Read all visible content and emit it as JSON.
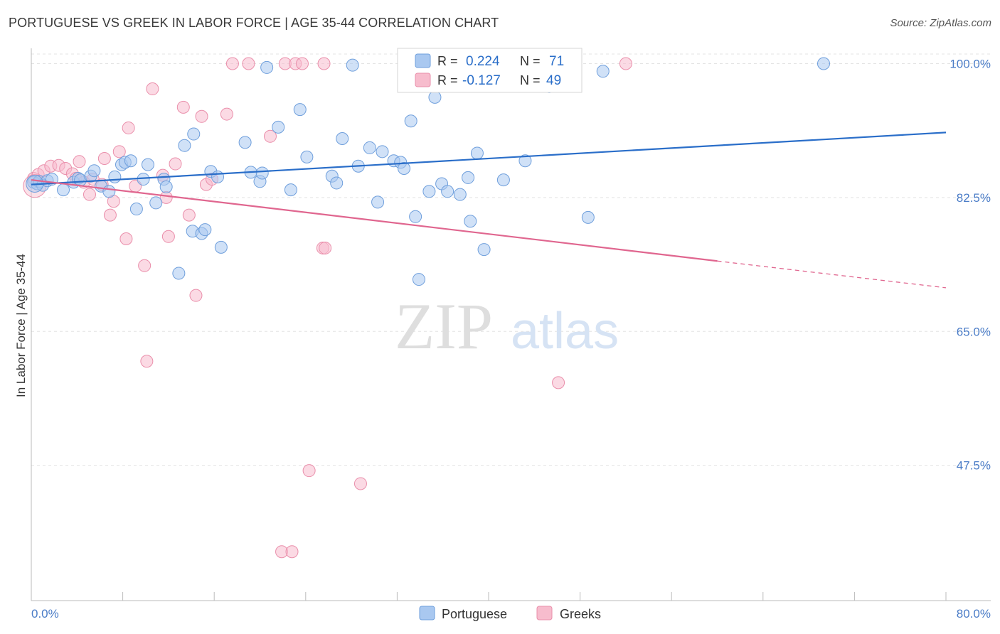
{
  "header": {
    "title": "PORTUGUESE VS GREEK IN LABOR FORCE | AGE 35-44 CORRELATION CHART",
    "source": "Source: ZipAtlas.com"
  },
  "watermark": {
    "zip": "ZIP",
    "atlas": "atlas"
  },
  "legend_box": {
    "rows": [
      {
        "r_label": "R =",
        "r_value": "0.224",
        "n_label": "N =",
        "n_value": "71"
      },
      {
        "r_label": "R =",
        "r_value": "-0.127",
        "n_label": "N =",
        "n_value": "49"
      }
    ]
  },
  "bottom_legend": [
    "Portuguese",
    "Greeks"
  ],
  "colors": {
    "portuguese_fill": "#a9c8f0",
    "portuguese_stroke": "#6f9fdc",
    "portuguese_line": "#2a6ec9",
    "greeks_fill": "#f7bccd",
    "greeks_stroke": "#ea8fab",
    "greeks_line": "#e0668f",
    "tick_text": "#4a7cc7"
  },
  "chart_data": {
    "type": "scatter",
    "title": "PORTUGUESE VS GREEK IN LABOR FORCE | AGE 35-44 CORRELATION CHART",
    "xlabel": "",
    "ylabel": "In Labor Force | Age 35-44",
    "xlim": [
      0,
      80
    ],
    "ylim": [
      30,
      102
    ],
    "x_tick_labels": [
      "0.0%",
      "80.0%"
    ],
    "y_ticks": [
      47.5,
      65.0,
      82.5,
      100.0
    ],
    "y_tick_labels": [
      "47.5%",
      "65.0%",
      "82.5%",
      "100.0%"
    ],
    "grid": true,
    "legend_position": "bottom",
    "series": [
      {
        "name": "Portuguese",
        "stats": {
          "R": 0.224,
          "N": 71
        },
        "trend": {
          "x0": 0,
          "y0": 84.2,
          "x1": 80,
          "y1": 91.0
        },
        "points": [
          [
            0.2,
            84.5
          ],
          [
            0.5,
            84.3
          ],
          [
            0.7,
            84.6
          ],
          [
            1.0,
            84.1
          ],
          [
            1.4,
            84.7
          ],
          [
            1.8,
            84.9
          ],
          [
            2.8,
            83.5
          ],
          [
            3.7,
            84.5
          ],
          [
            4.1,
            85.0
          ],
          [
            4.3,
            84.8
          ],
          [
            5.2,
            85.3
          ],
          [
            5.5,
            86.0
          ],
          [
            6.1,
            84.0
          ],
          [
            6.8,
            83.3
          ],
          [
            7.3,
            85.2
          ],
          [
            7.9,
            86.8
          ],
          [
            8.2,
            87.1
          ],
          [
            8.7,
            87.3
          ],
          [
            9.2,
            81.0
          ],
          [
            9.8,
            84.9
          ],
          [
            10.2,
            86.8
          ],
          [
            10.9,
            81.8
          ],
          [
            11.6,
            84.9
          ],
          [
            11.8,
            83.9
          ],
          [
            12.9,
            72.6
          ],
          [
            13.4,
            89.3
          ],
          [
            14.1,
            78.1
          ],
          [
            14.2,
            90.8
          ],
          [
            14.9,
            77.8
          ],
          [
            15.2,
            78.3
          ],
          [
            15.7,
            85.9
          ],
          [
            16.3,
            85.2
          ],
          [
            16.6,
            76.0
          ],
          [
            18.7,
            89.7
          ],
          [
            19.2,
            85.8
          ],
          [
            20.0,
            84.6
          ],
          [
            20.2,
            85.7
          ],
          [
            20.6,
            99.5
          ],
          [
            21.6,
            91.7
          ],
          [
            22.7,
            83.5
          ],
          [
            23.5,
            94.0
          ],
          [
            24.1,
            87.8
          ],
          [
            26.3,
            85.3
          ],
          [
            26.7,
            84.4
          ],
          [
            27.2,
            90.2
          ],
          [
            28.1,
            99.8
          ],
          [
            28.6,
            86.6
          ],
          [
            29.6,
            89.0
          ],
          [
            30.3,
            81.9
          ],
          [
            30.7,
            88.5
          ],
          [
            31.7,
            87.3
          ],
          [
            32.3,
            87.1
          ],
          [
            32.6,
            86.3
          ],
          [
            33.2,
            92.5
          ],
          [
            33.6,
            80.0
          ],
          [
            33.9,
            71.8
          ],
          [
            34.8,
            83.3
          ],
          [
            35.3,
            95.6
          ],
          [
            35.9,
            84.3
          ],
          [
            36.4,
            83.3
          ],
          [
            37.5,
            82.9
          ],
          [
            38.2,
            85.1
          ],
          [
            38.4,
            79.4
          ],
          [
            39.0,
            88.3
          ],
          [
            39.6,
            75.7
          ],
          [
            41.3,
            84.8
          ],
          [
            43.2,
            87.3
          ],
          [
            45.3,
            97.0
          ],
          [
            48.7,
            79.9
          ],
          [
            50.0,
            99.0
          ],
          [
            69.3,
            100.0
          ]
        ]
      },
      {
        "name": "Greeks",
        "stats": {
          "R": -0.127,
          "N": 49
        },
        "trend": {
          "x0": 0,
          "y0": 84.8,
          "x1": 60,
          "y1": 74.2,
          "x_dash_end": 80,
          "y_dash_end": 70.7
        },
        "points": [
          [
            0.2,
            85.0
          ],
          [
            0.6,
            85.5
          ],
          [
            1.1,
            86.0
          ],
          [
            1.7,
            86.6
          ],
          [
            2.4,
            86.7
          ],
          [
            3.0,
            86.3
          ],
          [
            3.6,
            85.6
          ],
          [
            3.9,
            85.0
          ],
          [
            4.2,
            87.2
          ],
          [
            4.6,
            84.5
          ],
          [
            5.1,
            82.9
          ],
          [
            5.4,
            84.9
          ],
          [
            6.2,
            84.2
          ],
          [
            6.4,
            87.6
          ],
          [
            6.9,
            80.2
          ],
          [
            7.2,
            82.0
          ],
          [
            7.7,
            88.5
          ],
          [
            8.3,
            77.1
          ],
          [
            8.5,
            91.6
          ],
          [
            9.1,
            84.0
          ],
          [
            9.9,
            73.6
          ],
          [
            10.1,
            61.1
          ],
          [
            10.6,
            96.7
          ],
          [
            11.5,
            85.4
          ],
          [
            11.8,
            82.5
          ],
          [
            12.0,
            77.4
          ],
          [
            12.6,
            86.9
          ],
          [
            13.3,
            94.3
          ],
          [
            13.8,
            80.2
          ],
          [
            14.4,
            69.7
          ],
          [
            14.9,
            93.1
          ],
          [
            15.3,
            84.2
          ],
          [
            15.8,
            84.9
          ],
          [
            17.1,
            93.4
          ],
          [
            17.6,
            100.0
          ],
          [
            19.0,
            100.0
          ],
          [
            20.9,
            90.5
          ],
          [
            21.9,
            36.2
          ],
          [
            22.2,
            100.0
          ],
          [
            22.8,
            36.2
          ],
          [
            23.1,
            100.0
          ],
          [
            23.7,
            100.0
          ],
          [
            24.3,
            46.8
          ],
          [
            25.5,
            75.9
          ],
          [
            25.7,
            75.9
          ],
          [
            25.6,
            100.0
          ],
          [
            28.8,
            45.1
          ],
          [
            46.1,
            58.3
          ],
          [
            52.0,
            100.0
          ]
        ]
      }
    ]
  }
}
